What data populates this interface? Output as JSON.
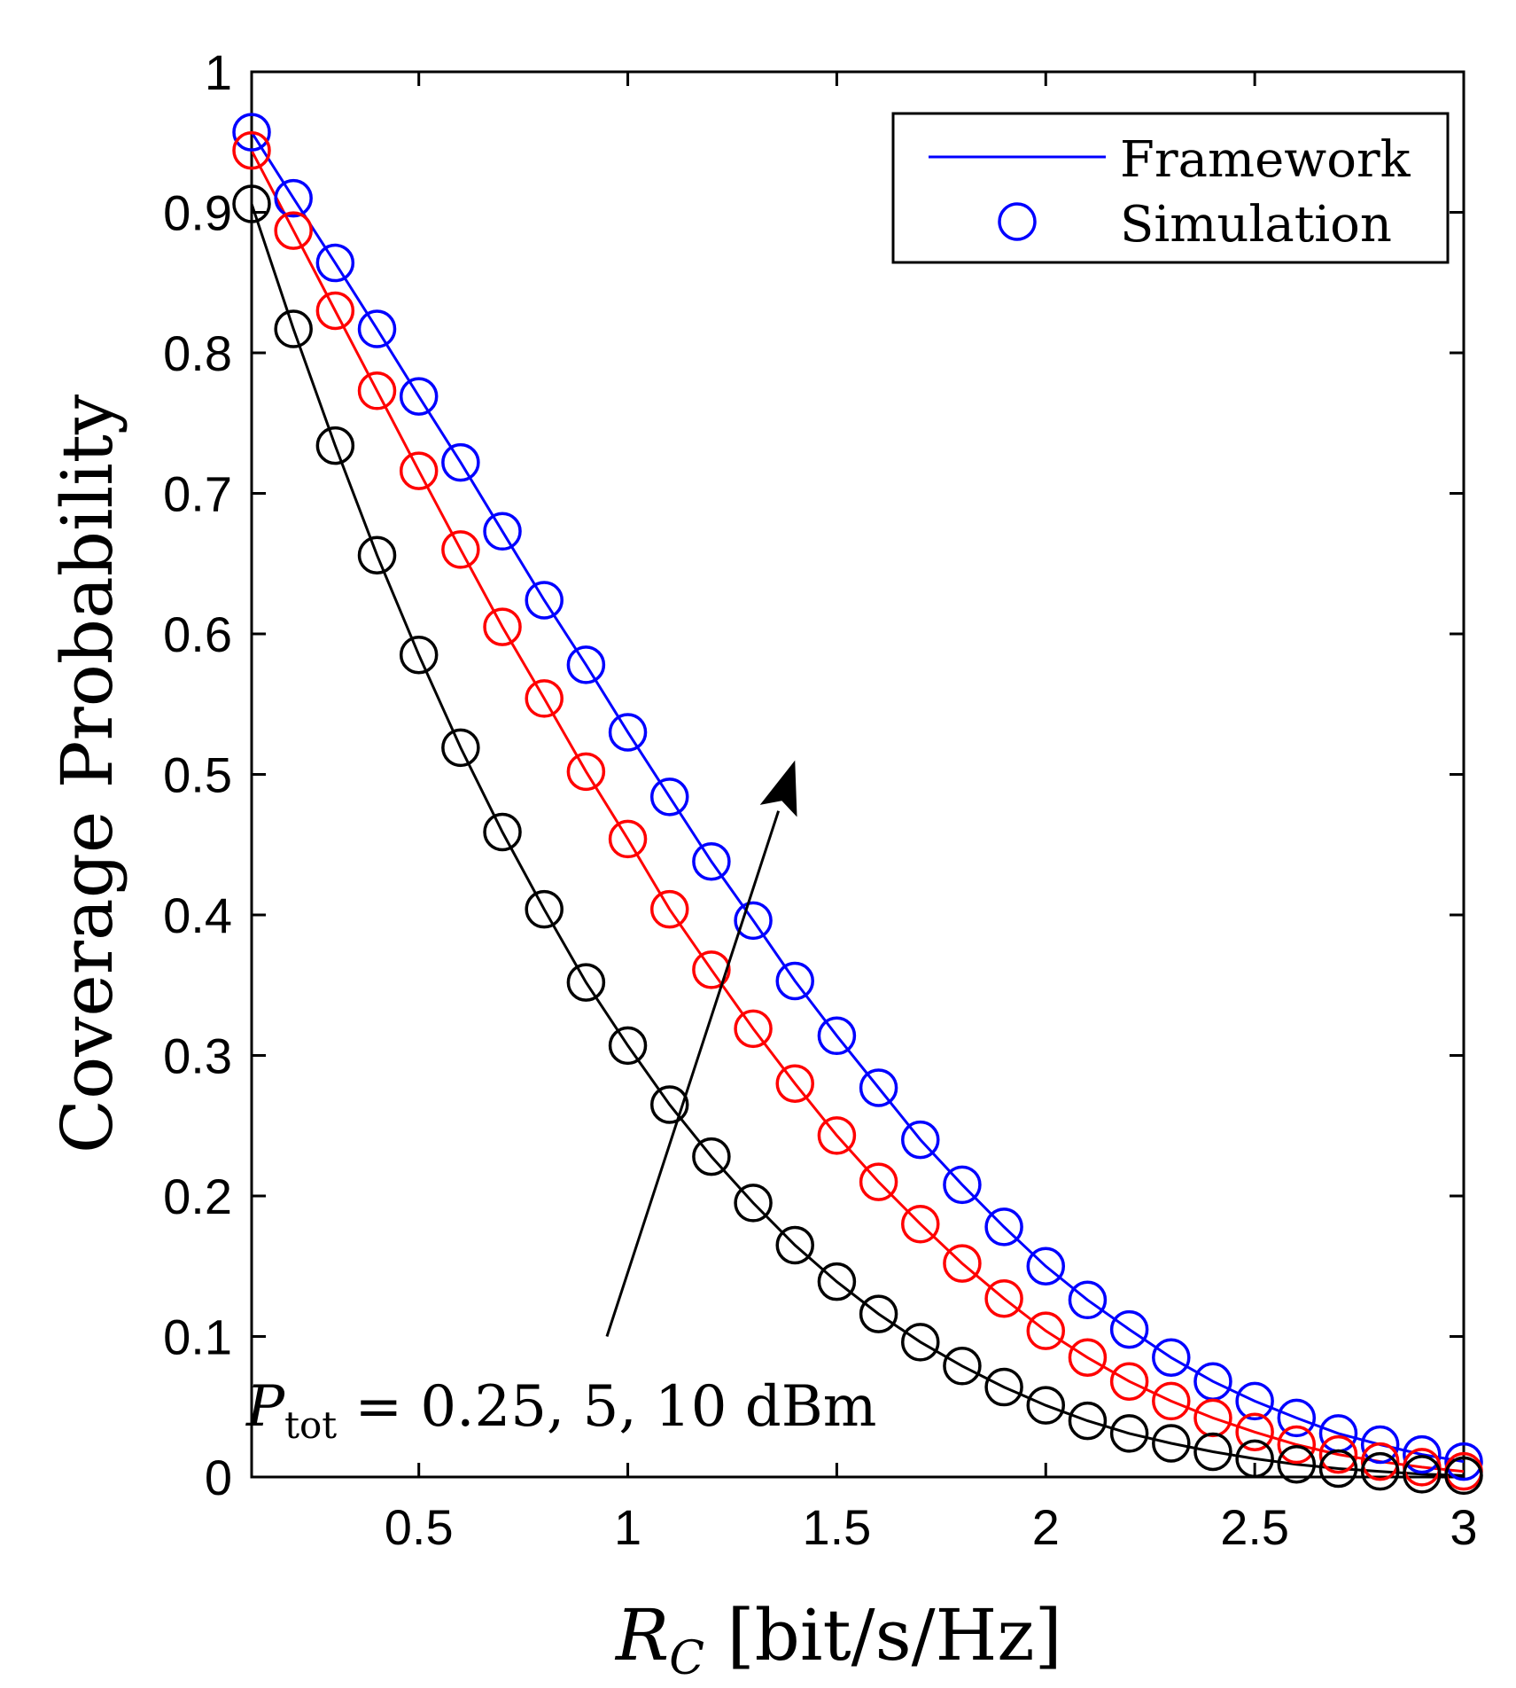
{
  "chart_data": {
    "type": "line",
    "title": "",
    "xlabel": "R_C [bit/s/Hz]",
    "ylabel": "Coverage Probability",
    "xlim": [
      0.1,
      3
    ],
    "ylim": [
      0,
      1
    ],
    "xticks": [
      0.5,
      1,
      1.5,
      2,
      2.5,
      3
    ],
    "xtick_labels": [
      "0.5",
      "1",
      "1.5",
      "2",
      "2.5",
      "3"
    ],
    "yticks": [
      0,
      0.1,
      0.2,
      0.3,
      0.4,
      0.5,
      0.6,
      0.7,
      0.8,
      0.9,
      1
    ],
    "ytick_labels": [
      "0",
      "0.1",
      "0.2",
      "0.3",
      "0.4",
      "0.5",
      "0.6",
      "0.7",
      "0.8",
      "0.9",
      "1"
    ],
    "grid": false,
    "legend": {
      "position": "top-right",
      "entries": [
        {
          "label": "Framework",
          "marker": "line",
          "color": "#0000ff"
        },
        {
          "label": "Simulation",
          "marker": "circle",
          "color": "#0000ff"
        }
      ]
    },
    "x": [
      0.1,
      0.2,
      0.3,
      0.4,
      0.5,
      0.6,
      0.7,
      0.8,
      0.9,
      1.0,
      1.1,
      1.2,
      1.3,
      1.4,
      1.5,
      1.6,
      1.7,
      1.8,
      1.9,
      2.0,
      2.1,
      2.2,
      2.3,
      2.4,
      2.5,
      2.6,
      2.7,
      2.8,
      2.9,
      3.0
    ],
    "series": [
      {
        "name": "P_tot = 10 dBm",
        "color": "#0000ff",
        "values": [
          0.957,
          0.91,
          0.864,
          0.817,
          0.769,
          0.722,
          0.673,
          0.624,
          0.578,
          0.53,
          0.484,
          0.438,
          0.396,
          0.353,
          0.314,
          0.277,
          0.24,
          0.208,
          0.178,
          0.15,
          0.126,
          0.105,
          0.085,
          0.068,
          0.054,
          0.042,
          0.031,
          0.023,
          0.016,
          0.011
        ]
      },
      {
        "name": "P_tot = 5 dBm",
        "color": "#ff0000",
        "values": [
          0.944,
          0.887,
          0.83,
          0.773,
          0.716,
          0.66,
          0.605,
          0.554,
          0.502,
          0.454,
          0.404,
          0.361,
          0.319,
          0.28,
          0.243,
          0.21,
          0.18,
          0.152,
          0.127,
          0.104,
          0.085,
          0.068,
          0.054,
          0.042,
          0.032,
          0.023,
          0.016,
          0.011,
          0.007,
          0.004
        ]
      },
      {
        "name": "P_tot = 0.25 dBm",
        "color": "#000000",
        "values": [
          0.906,
          0.817,
          0.734,
          0.656,
          0.585,
          0.519,
          0.459,
          0.404,
          0.352,
          0.307,
          0.265,
          0.228,
          0.195,
          0.165,
          0.139,
          0.116,
          0.096,
          0.079,
          0.064,
          0.051,
          0.04,
          0.031,
          0.024,
          0.018,
          0.013,
          0.009,
          0.006,
          0.004,
          0.002,
          0.001
        ]
      }
    ],
    "annotation": {
      "text_main": "P",
      "text_sub": "tot",
      "text_rest": " = 0.25, 5, 10 dBm",
      "arrow_from": [
        0.95,
        0.1
      ],
      "arrow_to": [
        1.4,
        0.51
      ]
    },
    "xlabel_main": "R",
    "xlabel_sub": "C",
    "xlabel_rest": " [bit/s/Hz]"
  }
}
